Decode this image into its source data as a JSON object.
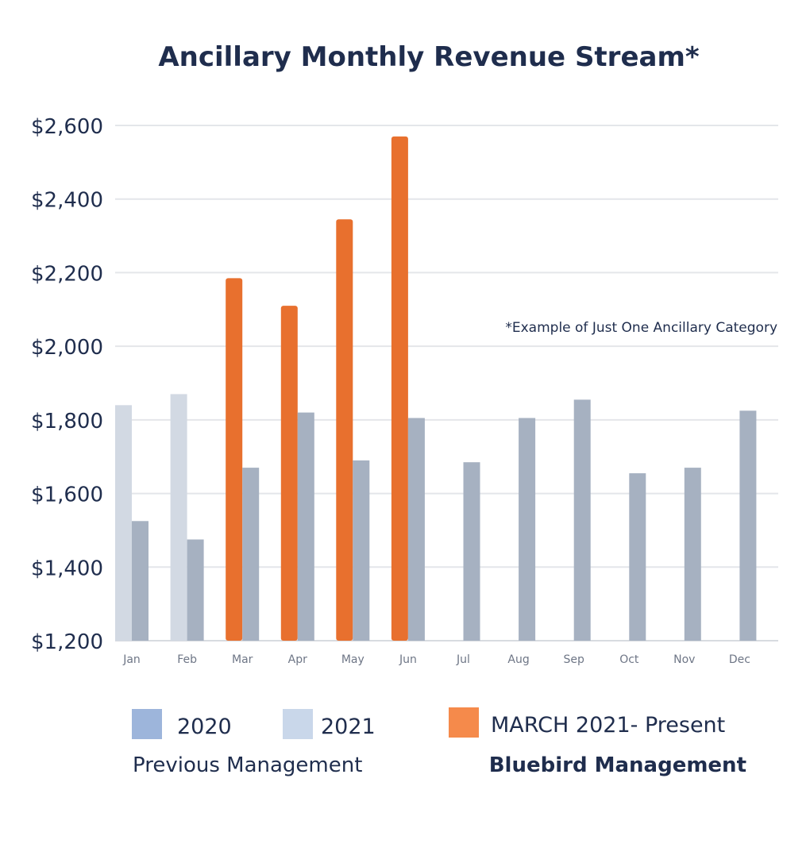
{
  "chart_data": {
    "type": "bar",
    "title": "Ancillary Monthly Revenue Stream*",
    "annotation": "*Example of Just One Ancillary Category",
    "categories": [
      "Jan",
      "Feb",
      "Mar",
      "Apr",
      "May",
      "Jun",
      "Jul",
      "Aug",
      "Sep",
      "Oct",
      "Nov",
      "Dec"
    ],
    "ylim": [
      1200,
      2600
    ],
    "yticks": [
      "$1,200",
      "$1,400",
      "$1,600",
      "$1,800",
      "$2,000",
      "$2,200",
      "$2,400",
      "$2,600"
    ],
    "ytick_values": [
      1200,
      1400,
      1600,
      1800,
      2000,
      2200,
      2400,
      2600
    ],
    "grid": true,
    "series": [
      {
        "name": "2021",
        "color": "#d2d9e3",
        "values": [
          1840,
          1870,
          null,
          null,
          null,
          null,
          null,
          null,
          null,
          null,
          null,
          null
        ]
      },
      {
        "name": "MARCH 2021- Present",
        "color": "#e8702e",
        "values": [
          null,
          null,
          2185,
          2110,
          2345,
          2570,
          null,
          null,
          null,
          null,
          null,
          null
        ]
      },
      {
        "name": "2020",
        "color": "#a6b1c1",
        "values": [
          1525,
          1475,
          1670,
          1820,
          1690,
          1805,
          1685,
          1805,
          1855,
          1655,
          1670,
          1825
        ]
      }
    ],
    "legend": {
      "position": "bottom",
      "items": [
        {
          "label": "2020",
          "color": "#9db5db"
        },
        {
          "label": "2021",
          "color": "#c9d7ea"
        },
        {
          "label": "MARCH 2021- Present",
          "color": "#f58a4b"
        }
      ],
      "group_labels": [
        "Previous Management",
        "Bluebird Management"
      ]
    }
  }
}
